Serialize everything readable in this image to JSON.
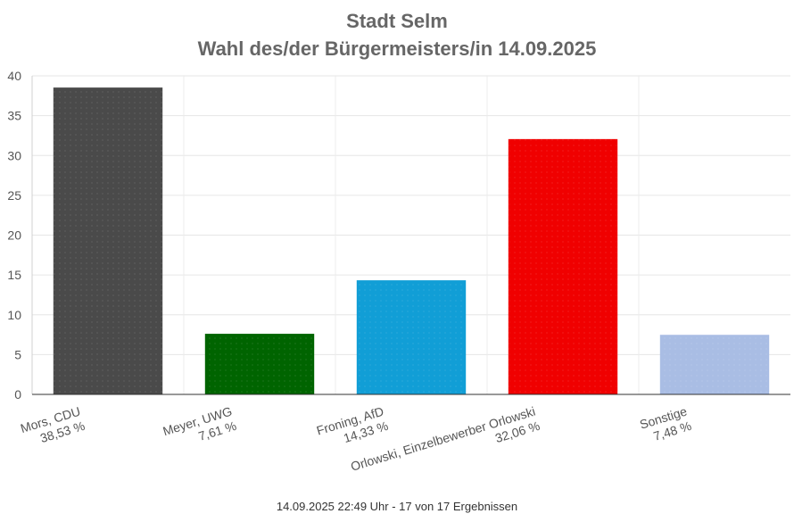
{
  "chart_data": {
    "type": "bar",
    "title": "Stadt Selm",
    "subtitle": "Wahl des/der Bürgermeisters/in 14.09.2025",
    "categories": [
      "Mors, CDU",
      "Meyer, UWG",
      "Froning, AfD",
      "Orlowski, Einzelbewerber Orlowski",
      "Sonstige"
    ],
    "value_labels": [
      "38,53 %",
      "7,61 %",
      "14,33 %",
      "32,06 %",
      "7,48 %"
    ],
    "values": [
      38.53,
      7.61,
      14.33,
      32.06,
      7.48
    ],
    "colors": [
      "#4a4a4a",
      "#006400",
      "#119ed6",
      "#f00000",
      "#a9bde4"
    ],
    "ylim": [
      0,
      40
    ],
    "yticks": [
      0,
      5,
      10,
      15,
      20,
      25,
      30,
      35,
      40
    ],
    "grid": true,
    "xlabel": "",
    "ylabel": ""
  },
  "footer": "14.09.2025 22:49 Uhr - 17 von 17 Ergebnissen"
}
